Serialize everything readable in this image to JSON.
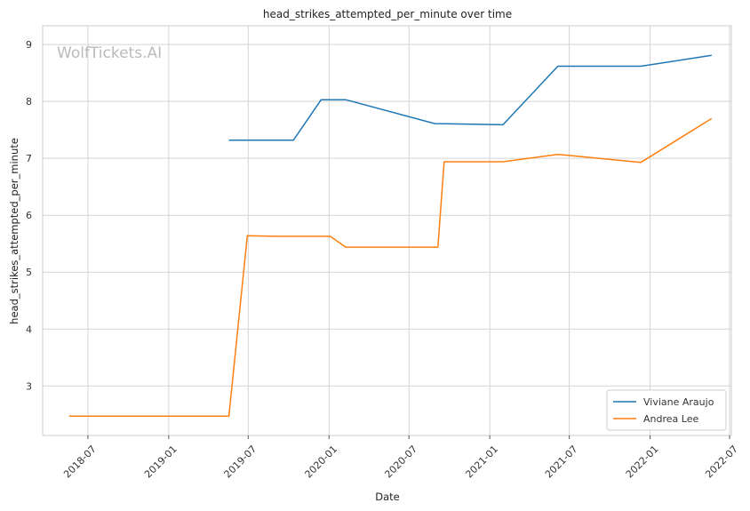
{
  "watermark": "WolfTickets.AI",
  "chart_data": {
    "type": "line",
    "title": "head_strikes_attempted_per_minute over time",
    "xlabel": "Date",
    "ylabel": "head_strikes_attempted_per_minute",
    "x_axis": "date",
    "xlim": [
      "2018-03-20",
      "2022-07-05"
    ],
    "ylim": [
      2.13,
      9.33
    ],
    "x_ticks": [
      "2018-07",
      "2019-01",
      "2019-07",
      "2020-01",
      "2020-07",
      "2021-01",
      "2021-07",
      "2022-01",
      "2022-07"
    ],
    "y_ticks": [
      3,
      4,
      5,
      6,
      7,
      8,
      9
    ],
    "grid": true,
    "legend_position": "bottom-right",
    "series": [
      {
        "name": "Viviane Araujo",
        "color": "#1f77b4",
        "points": [
          {
            "x": "2019-05-18",
            "y": 7.32
          },
          {
            "x": "2019-10-12",
            "y": 7.32
          },
          {
            "x": "2019-12-14",
            "y": 8.03
          },
          {
            "x": "2020-02-08",
            "y": 8.03
          },
          {
            "x": "2020-08-29",
            "y": 7.61
          },
          {
            "x": "2021-01-31",
            "y": 7.59
          },
          {
            "x": "2021-06-05",
            "y": 8.62
          },
          {
            "x": "2021-12-11",
            "y": 8.62
          },
          {
            "x": "2022-05-21",
            "y": 8.81
          }
        ]
      },
      {
        "name": "Andrea Lee",
        "color": "#ff7f0e",
        "points": [
          {
            "x": "2018-05-19",
            "y": 2.47
          },
          {
            "x": "2019-05-18",
            "y": 2.47
          },
          {
            "x": "2019-06-29",
            "y": 5.64
          },
          {
            "x": "2019-08-31",
            "y": 5.63
          },
          {
            "x": "2020-01-04",
            "y": 5.63
          },
          {
            "x": "2020-02-08",
            "y": 5.44
          },
          {
            "x": "2020-09-05",
            "y": 5.44
          },
          {
            "x": "2020-09-19",
            "y": 6.94
          },
          {
            "x": "2021-01-31",
            "y": 6.94
          },
          {
            "x": "2021-06-05",
            "y": 7.07
          },
          {
            "x": "2021-12-11",
            "y": 6.93
          },
          {
            "x": "2022-05-21",
            "y": 7.7
          }
        ]
      }
    ]
  }
}
